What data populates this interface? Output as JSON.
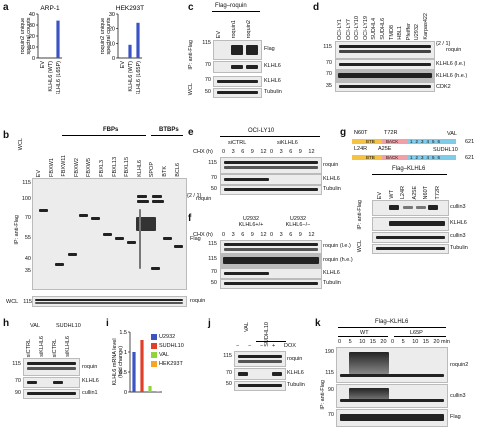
{
  "panels": {
    "a": {
      "label": "a",
      "chart_data": [
        {
          "type": "bar",
          "title": "ARP-1",
          "ylabel": "roquin2 unique spectral counts",
          "categories": [
            "EV",
            "KLHL6 (WT)",
            "KLHL6 (L65P)"
          ],
          "values": [
            0,
            0,
            34
          ],
          "ylim": [
            0,
            40
          ],
          "yticks": [
            0,
            10,
            20,
            30,
            40
          ],
          "color": "#3c53c4"
        },
        {
          "type": "bar",
          "title": "HEK293T",
          "ylabel": "roquin2 unique spectral counts",
          "categories": [
            "EV",
            "KLHL6 (WT)",
            "KLHL6 (L65P)"
          ],
          "values": [
            0,
            9,
            24
          ],
          "ylim": [
            0,
            30
          ],
          "yticks": [
            0,
            10,
            20,
            30
          ],
          "color": "#3c53c4"
        }
      ]
    },
    "b": {
      "label": "b",
      "group1": "FBPs",
      "group2": "BTBPs",
      "lanes": [
        "EV",
        "FBXW1",
        "FBXW11",
        "FBXW2",
        "FBXW5",
        "FBXL3",
        "FBXL13",
        "FBXL15",
        "KLHL6",
        "SPOP",
        "BTK",
        "BCL6"
      ],
      "mw": [
        "115",
        "100",
        "70",
        "55",
        "40",
        "35"
      ],
      "mw_wcl": "115",
      "side_ip": "IP: anti-Flag",
      "side_wcl": "WCL",
      "right1": "roquin",
      "right2": "Flag",
      "roquin_marks": "{2 / 1}"
    },
    "c": {
      "label": "c",
      "header": "Flag–roquin",
      "lanes": [
        "EV",
        "roquin1",
        "roquin2"
      ],
      "mw": [
        "115",
        "70",
        "70",
        "70",
        "50"
      ],
      "right": [
        "Flag",
        "KLHL6",
        "KLHL6",
        "Tubulin"
      ],
      "side_ip": "IP: anti-Flag",
      "side_wcl": "WCL"
    },
    "d": {
      "label": "d",
      "lanes": [
        "OCI-LY1",
        "OCI-LY7",
        "OCI-LY10",
        "OCI-LY19",
        "SUDHL4",
        "SUDHL6",
        "TMD8",
        "HBL1",
        "Pfeiffer",
        "U2932",
        "Karpas422"
      ],
      "mw": [
        "115",
        "70",
        "70",
        "50",
        "35"
      ],
      "right": [
        "roquin",
        "KLHL6 (l.e.)",
        "KLHL6 (h.e.)",
        "CDK2"
      ],
      "roquin_marks": "{2 / 1}"
    },
    "e": {
      "label": "e",
      "header": "OCI-LY10",
      "cond1": "siCTRL",
      "cond2": "siKLHL6",
      "chx_label": "CHX (h)",
      "times": [
        "0",
        "3",
        "6",
        "9",
        "12",
        "0",
        "3",
        "6",
        "9",
        "12"
      ],
      "mw": [
        "115",
        "70",
        "50"
      ],
      "right": [
        "roquin",
        "KLHL6",
        "Tubulin"
      ]
    },
    "f": {
      "label": "f",
      "cond1": "U2932 KLHL6+/+",
      "cond2": "U2932 KLHL6−/−",
      "chx_label": "CHX (h)",
      "times": [
        "0",
        "3",
        "6",
        "9",
        "12",
        "0",
        "3",
        "6",
        "9",
        "12"
      ],
      "mw": [
        "115",
        "115",
        "70",
        "50"
      ],
      "right": [
        "roquin (l.e.)",
        "roquin (h.e.)",
        "KLHL6",
        "Tubulin"
      ]
    },
    "g": {
      "label": "g",
      "mut_top": "N60T",
      "mut_top2": "T72R",
      "mut_bot": "L24R",
      "mut_bot2": "A25E",
      "line_top": "VAL",
      "line_bot": "SUDHL10",
      "end": "621",
      "domains": [
        "BTB",
        "BACK",
        "1",
        "2",
        "3",
        "4",
        "5",
        "6"
      ],
      "header": "Flag–KLHL6",
      "lanes": [
        "EV",
        "WT",
        "L24R",
        "A25E",
        "N60T",
        "T72R"
      ],
      "right": [
        "cullin3",
        "KLHL6",
        "cullin3",
        "Tubulin"
      ],
      "side_ip": "IP: anti-Flag",
      "side_wcl": "WCL"
    },
    "h": {
      "label": "h",
      "cond1": "VAL",
      "cond2": "SUDHL10",
      "lanes": [
        "siCTRL",
        "siKLHL6",
        "siCTRL",
        "siKLHL6"
      ],
      "mw": [
        "115",
        "70",
        "90"
      ],
      "right": [
        "roquin",
        "KLHL6",
        "cullin1"
      ]
    },
    "i": {
      "label": "i",
      "chart_data": {
        "type": "bar",
        "ylabel": "KLHL6 mRNA level (fold change)",
        "categories": [
          "U2932",
          "SUDHL10",
          "VAL",
          "HEK293T"
        ],
        "values": [
          1.0,
          1.3,
          0.15,
          0.02
        ],
        "ylim": [
          0,
          1.5
        ],
        "yticks": [
          0,
          0.5,
          1.0,
          1.5
        ],
        "series_colors": [
          "#3c53c4",
          "#e0402a",
          "#8fd43b",
          "#f5a623"
        ]
      }
    },
    "j": {
      "label": "j",
      "cond1": "VAL",
      "cond2": "SUDHL10",
      "dox": "DOX",
      "signs": [
        "−",
        "−",
        "−",
        "+"
      ],
      "mw": [
        "115",
        "70",
        "50"
      ],
      "right": [
        "roquin",
        "KLHL6",
        "Tubulin"
      ]
    },
    "k": {
      "label": "k",
      "header": "Flag–KLHL6",
      "cond1": "WT",
      "cond2": "L65P",
      "times": [
        "0",
        "5",
        "10",
        "15",
        "20",
        "0",
        "5",
        "10",
        "15",
        "20 min"
      ],
      "mw": [
        "190",
        "115",
        "90",
        "70"
      ],
      "right": [
        "roquin2",
        "cullin3",
        "Flag"
      ],
      "side_ip": "IP: anti-Flag"
    }
  }
}
